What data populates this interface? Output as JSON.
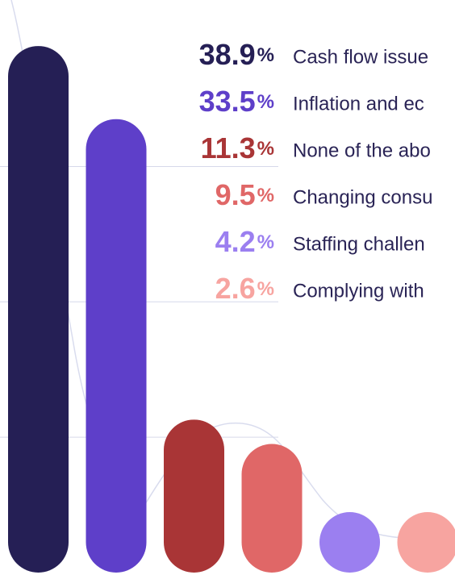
{
  "chart_data": {
    "type": "bar",
    "categories": [
      "Cash flow issue",
      "Inflation and ec",
      "None of the abo",
      "Changing consu",
      "Staffing challen",
      "Complying with"
    ],
    "values": [
      38.9,
      33.5,
      11.3,
      9.5,
      4.2,
      2.6
    ],
    "value_labels": [
      "38.9%",
      "33.5%",
      "11.3%",
      "9.5%",
      "4.2%",
      "2.6%"
    ],
    "colors": [
      "#251f55",
      "#5e3fc9",
      "#a93536",
      "#e06767",
      "#9b7ff0",
      "#f7a4a0"
    ],
    "ylim": [
      0,
      42.3
    ],
    "yticks": [
      10,
      20,
      30
    ],
    "grid": true
  }
}
